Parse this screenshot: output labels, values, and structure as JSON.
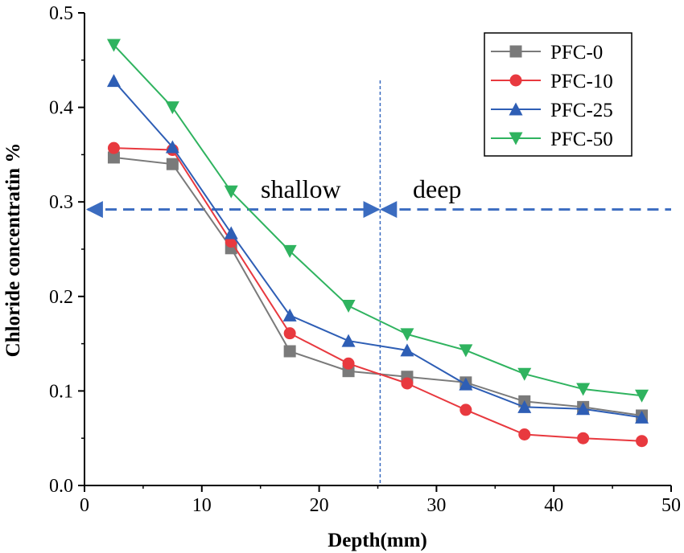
{
  "chart_data": {
    "type": "line",
    "xlabel": "Depth(mm)",
    "ylabel": "Chloride concentratin %",
    "xlim": [
      0,
      50
    ],
    "ylim": [
      0.0,
      0.5
    ],
    "x_ticks": [
      "0",
      "10",
      "20",
      "30",
      "40",
      "50"
    ],
    "y_ticks": [
      "0.0",
      "0.1",
      "0.2",
      "0.3",
      "0.4",
      "0.5"
    ],
    "grid": false,
    "legend_position": "top-right",
    "x": [
      2.5,
      7.5,
      12.5,
      17.5,
      22.5,
      27.5,
      32.5,
      37.5,
      42.5,
      47.5
    ],
    "series": [
      {
        "name": "PFC-0",
        "color": "#7a7a7a",
        "marker": "square",
        "values": [
          0.347,
          0.34,
          0.251,
          0.142,
          0.121,
          0.115,
          0.109,
          0.089,
          0.083,
          0.074
        ]
      },
      {
        "name": "PFC-10",
        "color": "#e8393f",
        "marker": "circle",
        "values": [
          0.357,
          0.355,
          0.258,
          0.161,
          0.129,
          0.108,
          0.08,
          0.054,
          0.05,
          0.047
        ]
      },
      {
        "name": "PFC-25",
        "color": "#2e5eb5",
        "marker": "triangle-up",
        "values": [
          0.428,
          0.358,
          0.267,
          0.18,
          0.153,
          0.143,
          0.107,
          0.083,
          0.081,
          0.072
        ]
      },
      {
        "name": "PFC-50",
        "color": "#2fb35f",
        "marker": "triangle-down",
        "values": [
          0.466,
          0.4,
          0.311,
          0.248,
          0.19,
          0.16,
          0.143,
          0.118,
          0.102,
          0.095
        ]
      }
    ],
    "annotations": {
      "shallow_label": "shallow",
      "deep_label": "deep",
      "boundary_depth": 25.2,
      "arrow_level": 0.292,
      "arrow_color": "#3b6cc0"
    }
  }
}
